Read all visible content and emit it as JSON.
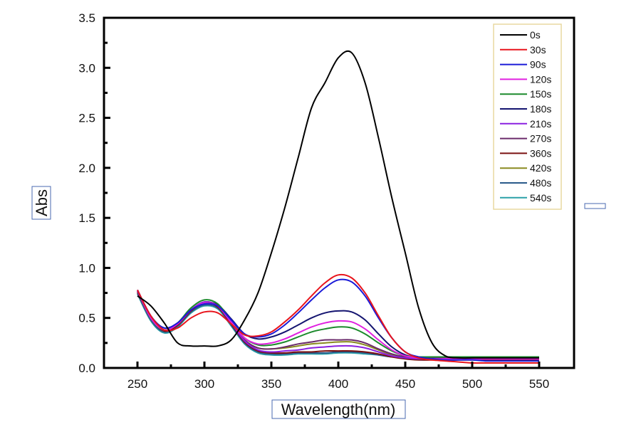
{
  "chart_data": {
    "type": "line",
    "title": "",
    "xlabel": "Wavelength(nm)",
    "ylabel": "Abs",
    "right_label": "",
    "xlim": [
      225,
      570
    ],
    "ylim": [
      0,
      3.5
    ],
    "xticks": [
      250,
      300,
      350,
      400,
      450,
      500,
      550
    ],
    "xtick_labels": [
      "250",
      "300",
      "350",
      "400",
      "450",
      "500",
      "550"
    ],
    "yticks": [
      0.0,
      0.5,
      1.0,
      1.5,
      2.0,
      2.5,
      3.0,
      3.5
    ],
    "ytick_labels": [
      "0.0",
      "0.5",
      "1.0",
      "1.5",
      "2.0",
      "2.5",
      "3.0",
      "3.5"
    ],
    "grid": false,
    "legend_position": "top-right",
    "x": [
      250,
      260,
      270,
      280,
      290,
      300,
      310,
      320,
      330,
      340,
      350,
      360,
      370,
      380,
      390,
      400,
      410,
      420,
      430,
      440,
      450,
      460,
      470,
      480,
      490,
      500,
      510,
      520,
      530,
      540,
      550
    ],
    "series": [
      {
        "name": "0s",
        "color": "#000000",
        "values": [
          0.72,
          0.62,
          0.45,
          0.25,
          0.22,
          0.22,
          0.22,
          0.28,
          0.48,
          0.75,
          1.15,
          1.6,
          2.1,
          2.6,
          2.85,
          3.1,
          3.15,
          2.85,
          2.3,
          1.7,
          1.15,
          0.6,
          0.25,
          0.12,
          0.1,
          0.1,
          0.1,
          0.1,
          0.1,
          0.1,
          0.1
        ]
      },
      {
        "name": "30s",
        "color": "#e8141c",
        "values": [
          0.78,
          0.52,
          0.38,
          0.4,
          0.5,
          0.56,
          0.55,
          0.44,
          0.33,
          0.32,
          0.36,
          0.46,
          0.58,
          0.72,
          0.85,
          0.93,
          0.9,
          0.75,
          0.52,
          0.3,
          0.16,
          0.1,
          0.08,
          0.07,
          0.06,
          0.05,
          0.05,
          0.05,
          0.05,
          0.05,
          0.05
        ]
      },
      {
        "name": "90s",
        "color": "#1a1ad8",
        "values": [
          0.78,
          0.52,
          0.4,
          0.45,
          0.58,
          0.64,
          0.62,
          0.48,
          0.34,
          0.31,
          0.34,
          0.43,
          0.55,
          0.68,
          0.8,
          0.88,
          0.86,
          0.72,
          0.5,
          0.3,
          0.16,
          0.11,
          0.09,
          0.08,
          0.08,
          0.08,
          0.07,
          0.07,
          0.07,
          0.07,
          0.07
        ]
      },
      {
        "name": "120s",
        "color": "#e020e0",
        "values": [
          0.78,
          0.5,
          0.38,
          0.44,
          0.58,
          0.65,
          0.62,
          0.46,
          0.3,
          0.24,
          0.25,
          0.29,
          0.35,
          0.41,
          0.45,
          0.47,
          0.46,
          0.39,
          0.28,
          0.18,
          0.12,
          0.1,
          0.09,
          0.09,
          0.09,
          0.09,
          0.09,
          0.09,
          0.09,
          0.09,
          0.09
        ]
      },
      {
        "name": "150s",
        "color": "#1c8a2c",
        "values": [
          0.78,
          0.5,
          0.38,
          0.45,
          0.6,
          0.68,
          0.64,
          0.47,
          0.3,
          0.23,
          0.23,
          0.26,
          0.31,
          0.36,
          0.39,
          0.41,
          0.4,
          0.34,
          0.25,
          0.17,
          0.12,
          0.11,
          0.11,
          0.11,
          0.11,
          0.11,
          0.11,
          0.11,
          0.11,
          0.11,
          0.11
        ]
      },
      {
        "name": "180s",
        "color": "#141470",
        "values": [
          0.78,
          0.52,
          0.4,
          0.45,
          0.58,
          0.65,
          0.63,
          0.49,
          0.34,
          0.29,
          0.31,
          0.36,
          0.43,
          0.5,
          0.55,
          0.57,
          0.56,
          0.48,
          0.34,
          0.21,
          0.13,
          0.1,
          0.09,
          0.09,
          0.09,
          0.09,
          0.09,
          0.09,
          0.09,
          0.09,
          0.09
        ]
      },
      {
        "name": "210s",
        "color": "#8a20e0",
        "values": [
          0.77,
          0.5,
          0.38,
          0.44,
          0.58,
          0.66,
          0.62,
          0.45,
          0.27,
          0.18,
          0.16,
          0.17,
          0.18,
          0.2,
          0.21,
          0.22,
          0.22,
          0.2,
          0.16,
          0.12,
          0.1,
          0.09,
          0.09,
          0.09,
          0.09,
          0.09,
          0.09,
          0.09,
          0.09,
          0.09,
          0.09
        ]
      },
      {
        "name": "270s",
        "color": "#6a2a6a",
        "values": [
          0.77,
          0.5,
          0.38,
          0.44,
          0.58,
          0.66,
          0.62,
          0.45,
          0.28,
          0.2,
          0.19,
          0.21,
          0.24,
          0.26,
          0.28,
          0.28,
          0.28,
          0.25,
          0.19,
          0.14,
          0.11,
          0.1,
          0.1,
          0.1,
          0.1,
          0.1,
          0.1,
          0.1,
          0.1,
          0.1,
          0.1
        ]
      },
      {
        "name": "360s",
        "color": "#7a1010",
        "values": [
          0.76,
          0.5,
          0.37,
          0.43,
          0.57,
          0.65,
          0.61,
          0.44,
          0.26,
          0.17,
          0.15,
          0.15,
          0.16,
          0.16,
          0.17,
          0.17,
          0.17,
          0.16,
          0.14,
          0.11,
          0.09,
          0.08,
          0.08,
          0.08,
          0.08,
          0.08,
          0.08,
          0.08,
          0.08,
          0.08,
          0.08
        ]
      },
      {
        "name": "420s",
        "color": "#8a8a20",
        "values": [
          0.76,
          0.5,
          0.37,
          0.43,
          0.57,
          0.65,
          0.62,
          0.45,
          0.28,
          0.2,
          0.19,
          0.2,
          0.22,
          0.24,
          0.25,
          0.26,
          0.26,
          0.23,
          0.18,
          0.13,
          0.11,
          0.1,
          0.1,
          0.1,
          0.1,
          0.1,
          0.1,
          0.1,
          0.1,
          0.1,
          0.1
        ]
      },
      {
        "name": "480s",
        "color": "#2a5a8a",
        "values": [
          0.75,
          0.48,
          0.36,
          0.42,
          0.56,
          0.63,
          0.6,
          0.43,
          0.25,
          0.16,
          0.14,
          0.14,
          0.15,
          0.15,
          0.15,
          0.16,
          0.16,
          0.15,
          0.13,
          0.11,
          0.1,
          0.1,
          0.1,
          0.1,
          0.1,
          0.1,
          0.1,
          0.1,
          0.1,
          0.1,
          0.1
        ]
      },
      {
        "name": "540s",
        "color": "#2aa0a8",
        "values": [
          0.74,
          0.47,
          0.35,
          0.41,
          0.55,
          0.62,
          0.59,
          0.42,
          0.24,
          0.15,
          0.13,
          0.13,
          0.14,
          0.14,
          0.14,
          0.15,
          0.15,
          0.14,
          0.13,
          0.11,
          0.11,
          0.11,
          0.11,
          0.11,
          0.11,
          0.11,
          0.11,
          0.11,
          0.11,
          0.11,
          0.11
        ]
      }
    ]
  }
}
